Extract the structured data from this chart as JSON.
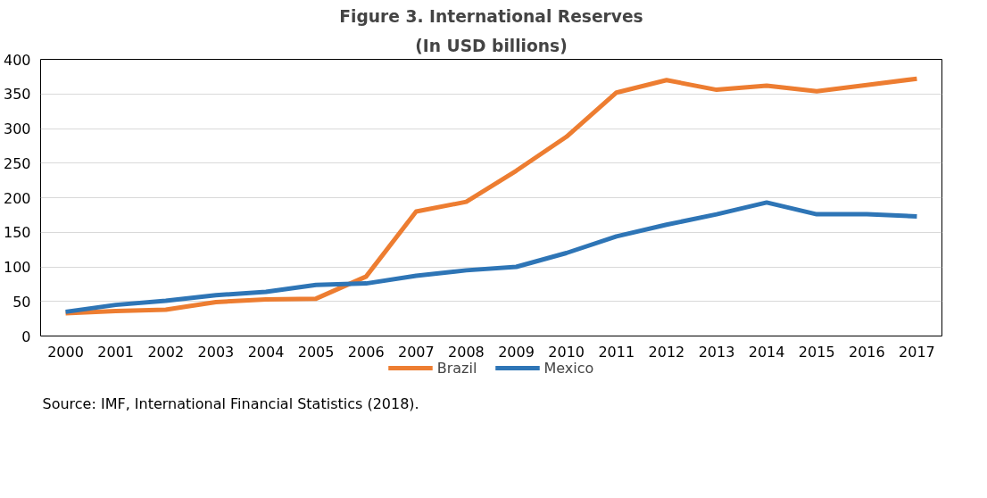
{
  "chart_data": {
    "type": "line",
    "title": "Figure 3. International Reserves",
    "subtitle": "(In USD billions)",
    "categories": [
      "2000",
      "2001",
      "2002",
      "2003",
      "2004",
      "2005",
      "2006",
      "2007",
      "2008",
      "2009",
      "2010",
      "2011",
      "2012",
      "2013",
      "2014",
      "2015",
      "2016",
      "2017"
    ],
    "series": [
      {
        "name": "Brazil",
        "color": "#ed7d31",
        "values": [
          33,
          36,
          38,
          49,
          53,
          54,
          86,
          180,
          194,
          239,
          288,
          352,
          370,
          356,
          362,
          354,
          363,
          372
        ]
      },
      {
        "name": "Mexico",
        "color": "#2e75b6",
        "values": [
          35,
          45,
          51,
          59,
          64,
          74,
          76,
          87,
          95,
          100,
          120,
          144,
          161,
          176,
          193,
          176,
          176,
          173
        ]
      }
    ],
    "ylim": [
      0,
      400
    ],
    "yticks": [
      0,
      50,
      100,
      150,
      200,
      250,
      300,
      350,
      400
    ],
    "grid": "y",
    "legend": "bottom",
    "marker": "none",
    "line_style": "solid",
    "annotations": [
      "Source: IMF, International Financial Statistics (2018)."
    ]
  }
}
